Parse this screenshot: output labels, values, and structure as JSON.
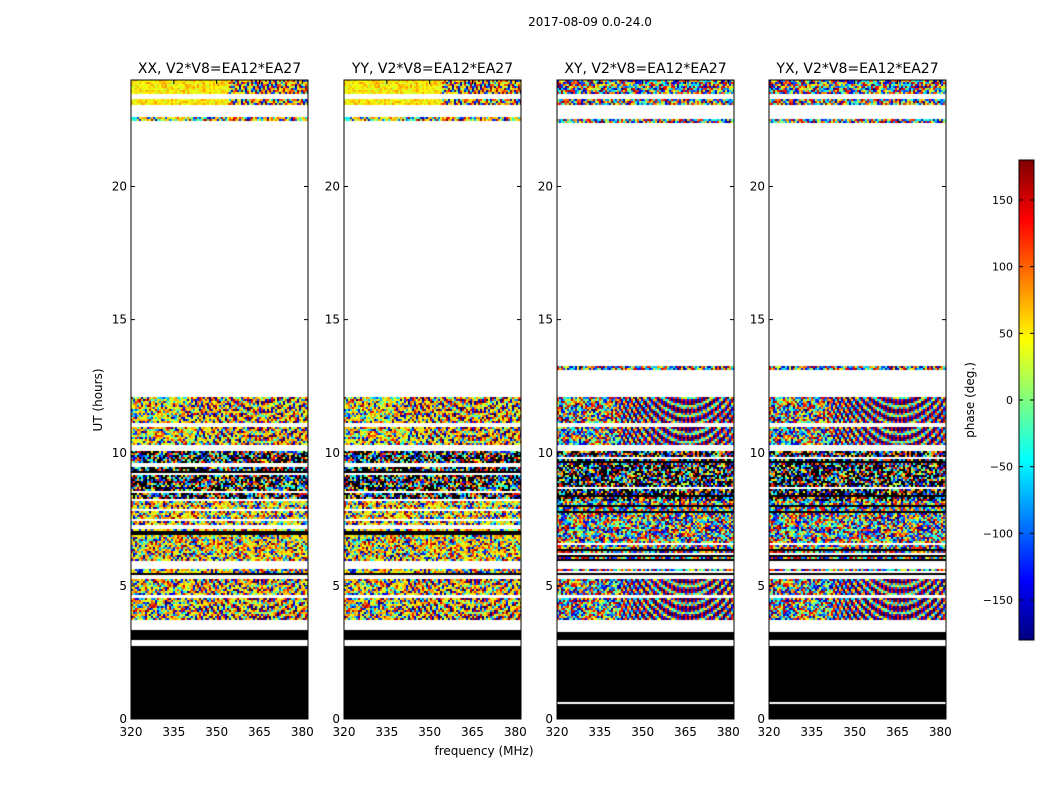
{
  "chart_data": {
    "type": "heatmap",
    "suptitle": "2017-08-09 0.0-24.0",
    "xlabel": "frequency (MHz)",
    "ylabel": "UT (hours)",
    "xlim": [
      320,
      382
    ],
    "ylim": [
      0,
      24
    ],
    "x_ticks": [
      320,
      335,
      350,
      365,
      380
    ],
    "y_ticks": [
      0,
      5,
      10,
      15,
      20
    ],
    "colormap": "jet",
    "colorbar": {
      "label": "phase (deg.)",
      "range": [
        -180,
        180
      ],
      "ticks": [
        150,
        100,
        50,
        0,
        -50,
        -100,
        -150
      ],
      "tick_labels": [
        "150",
        "100",
        "50",
        "0",
        "−50",
        "−100",
        "−150"
      ],
      "colors": [
        "#00007f",
        "#0000ff",
        "#007fff",
        "#00ffff",
        "#7fff7f",
        "#ffff00",
        "#ff7f00",
        "#ff0000",
        "#7f0000"
      ]
    },
    "panels": [
      {
        "title": "XX, V2*V8=EA12*EA27",
        "mode": "parallel"
      },
      {
        "title": "YY, V2*V8=EA12*EA27",
        "mode": "parallel"
      },
      {
        "title": "XY, V2*V8=EA12*EA27",
        "mode": "cross"
      },
      {
        "title": "YX, V2*V8=EA12*EA27",
        "mode": "cross"
      }
    ],
    "data_blocks": [
      {
        "ut": [
          0.0,
          2.75
        ],
        "kind": "zero"
      },
      {
        "ut": [
          2.95,
          3.35
        ],
        "kind": "zero"
      },
      {
        "ut": [
          3.75,
          4.55
        ],
        "kind": "fringe"
      },
      {
        "ut": [
          4.7,
          5.25
        ],
        "kind": "fringe"
      },
      {
        "ut": [
          5.45,
          5.65
        ],
        "kind": "noisy"
      },
      {
        "ut": [
          5.95,
          8.2
        ],
        "kind": "noisy"
      },
      {
        "ut": [
          8.2,
          10.05
        ],
        "kind": "dense"
      },
      {
        "ut": [
          10.3,
          10.95
        ],
        "kind": "fringe"
      },
      {
        "ut": [
          11.1,
          12.1
        ],
        "kind": "fringe"
      },
      {
        "ut": [
          13.15,
          13.25
        ],
        "kind": "noisy"
      },
      {
        "ut": [
          22.4,
          22.6
        ],
        "kind": "noisy"
      },
      {
        "ut": [
          23.05,
          23.3
        ],
        "kind": "uniform"
      },
      {
        "ut": [
          23.5,
          24.0
        ],
        "kind": "uniform"
      }
    ]
  }
}
